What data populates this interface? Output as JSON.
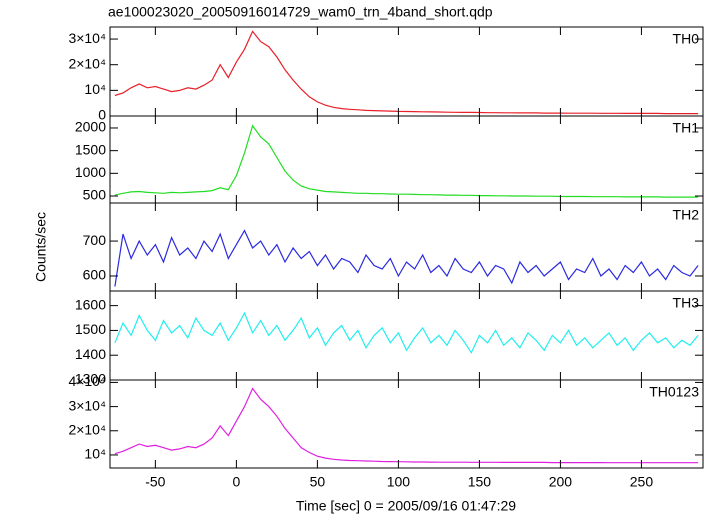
{
  "title": "ae100023020_20050916014729_wam0_trn_4band_short.qdp",
  "xlabel": "Time [sec] 0 = 2005/09/16 01:47:29",
  "ylabel": "Counts/sec",
  "xlim": [
    -78,
    288
  ],
  "xticks": [
    -50,
    0,
    50,
    100,
    150,
    200,
    250
  ],
  "x": [
    -75,
    -70,
    -65,
    -60,
    -55,
    -50,
    -45,
    -40,
    -35,
    -30,
    -25,
    -20,
    -15,
    -10,
    -5,
    0,
    5,
    10,
    15,
    20,
    25,
    30,
    35,
    40,
    45,
    50,
    55,
    60,
    65,
    70,
    75,
    80,
    85,
    90,
    95,
    100,
    105,
    110,
    115,
    120,
    125,
    130,
    135,
    140,
    145,
    150,
    155,
    160,
    165,
    170,
    175,
    180,
    185,
    190,
    195,
    200,
    205,
    210,
    215,
    220,
    225,
    230,
    235,
    240,
    245,
    250,
    255,
    260,
    265,
    270,
    275,
    280,
    285
  ],
  "chart_data": [
    {
      "type": "line",
      "label": "TH0",
      "color": "#e8202a",
      "ylim": [
        0,
        34700
      ],
      "yticks": [
        0,
        {
          "value": 10000,
          "label": "10⁴"
        },
        {
          "value": 20000,
          "label": "2×10⁴"
        },
        {
          "value": 30000,
          "label": "3×10⁴"
        }
      ],
      "values": [
        8000,
        9000,
        11000,
        12500,
        11000,
        11500,
        10500,
        9500,
        10000,
        11000,
        10500,
        12000,
        14000,
        20000,
        15000,
        21000,
        26000,
        33000,
        29000,
        27000,
        23000,
        18000,
        14000,
        10500,
        7500,
        5500,
        4200,
        3400,
        2900,
        2600,
        2400,
        2200,
        2100,
        2000,
        1900,
        1800,
        1750,
        1700,
        1650,
        1600,
        1550,
        1500,
        1450,
        1400,
        1400,
        1350,
        1300,
        1300,
        1250,
        1250,
        1200,
        1200,
        1200,
        1150,
        1150,
        1150,
        1100,
        1100,
        1100,
        1100,
        1050,
        1050,
        1050,
        1000,
        1000,
        1000,
        1000,
        1000,
        950,
        950,
        950,
        950,
        950
      ]
    },
    {
      "type": "line",
      "label": "TH1",
      "color": "#22dd22",
      "ylim": [
        346,
        2264
      ],
      "yticks": [
        500,
        1000,
        1500,
        2000
      ],
      "values": [
        520,
        560,
        590,
        600,
        580,
        570,
        560,
        580,
        570,
        580,
        590,
        600,
        620,
        680,
        640,
        950,
        1450,
        2050,
        1800,
        1650,
        1350,
        1050,
        850,
        720,
        660,
        630,
        600,
        590,
        580,
        570,
        560,
        560,
        550,
        550,
        545,
        540,
        540,
        535,
        530,
        530,
        525,
        520,
        520,
        515,
        515,
        510,
        510,
        505,
        505,
        500,
        500,
        500,
        495,
        495,
        495,
        490,
        490,
        490,
        490,
        485,
        485,
        485,
        485,
        480,
        480,
        480,
        480,
        480,
        475,
        475,
        475,
        475,
        475
      ]
    },
    {
      "type": "line",
      "label": "TH2",
      "color": "#2a2ae0",
      "ylim": [
        557,
        809
      ],
      "yticks": [
        600,
        700
      ],
      "values": [
        570,
        720,
        650,
        700,
        660,
        690,
        640,
        710,
        660,
        680,
        650,
        700,
        670,
        720,
        650,
        690,
        730,
        680,
        700,
        660,
        690,
        640,
        680,
        650,
        670,
        630,
        660,
        620,
        650,
        640,
        610,
        660,
        630,
        620,
        650,
        600,
        640,
        620,
        660,
        610,
        630,
        600,
        650,
        620,
        610,
        640,
        600,
        630,
        620,
        580,
        640,
        610,
        630,
        600,
        620,
        640,
        590,
        620,
        610,
        650,
        600,
        620,
        590,
        630,
        610,
        640,
        600,
        620,
        590,
        630,
        610,
        600,
        630
      ]
    },
    {
      "type": "line",
      "label": "TH3",
      "color": "#22eeee",
      "ylim": [
        1300,
        1659
      ],
      "yticks": [
        1300,
        1400,
        1500,
        1600
      ],
      "values": [
        1450,
        1530,
        1480,
        1560,
        1500,
        1460,
        1540,
        1490,
        1520,
        1470,
        1550,
        1500,
        1480,
        1530,
        1460,
        1510,
        1570,
        1490,
        1540,
        1480,
        1520,
        1460,
        1500,
        1550,
        1470,
        1510,
        1440,
        1490,
        1520,
        1460,
        1500,
        1430,
        1480,
        1510,
        1450,
        1490,
        1420,
        1470,
        1510,
        1450,
        1480,
        1440,
        1500,
        1460,
        1410,
        1480,
        1450,
        1500,
        1440,
        1470,
        1430,
        1490,
        1460,
        1420,
        1480,
        1450,
        1500,
        1440,
        1470,
        1430,
        1460,
        1490,
        1440,
        1470,
        1420,
        1460,
        1490,
        1450,
        1470,
        1430,
        1460,
        1440,
        1480
      ]
    },
    {
      "type": "line",
      "label": "TH0123",
      "color": "#e020e0",
      "ylim": [
        4600,
        41000
      ],
      "yticks": [
        {
          "value": 10000,
          "label": "10⁴"
        },
        {
          "value": 20000,
          "label": "2×10⁴"
        },
        {
          "value": 30000,
          "label": "3×10⁴"
        },
        {
          "value": 40000,
          "label": "4×10⁴"
        }
      ],
      "values": [
        10500,
        11500,
        13000,
        14500,
        13500,
        14000,
        13000,
        12000,
        12500,
        13500,
        13000,
        14500,
        17000,
        22000,
        18000,
        24000,
        30000,
        37500,
        33000,
        30000,
        26000,
        21000,
        17000,
        13000,
        11000,
        9500,
        8700,
        8200,
        7900,
        7700,
        7600,
        7500,
        7400,
        7300,
        7250,
        7200,
        7150,
        7100,
        7100,
        7050,
        7000,
        7000,
        7000,
        7000,
        6950,
        6950,
        6950,
        6950,
        6900,
        6900,
        6900,
        6900,
        6900,
        6900,
        6850,
        6850,
        6850,
        6850,
        6850,
        6850,
        6850,
        6800,
        6800,
        6800,
        6800,
        6800,
        6800,
        6800,
        6800,
        6800,
        6800,
        6800,
        6800
      ]
    }
  ]
}
